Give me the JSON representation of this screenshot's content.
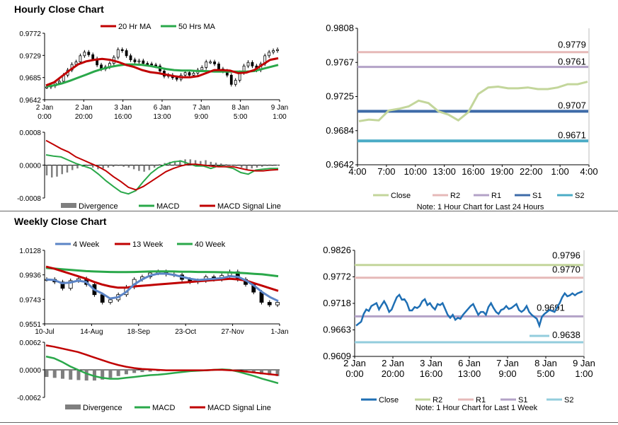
{
  "titles": {
    "hourly": "Hourly Close Chart",
    "weekly": "Weekly Close Chart"
  },
  "colors": {
    "ma_short": "#c00000",
    "ma_long": "#2aa84a",
    "ma_4w": "#5b84c6",
    "close_pivot": "#c3d69b",
    "r2_pivot": "#e6b9b8",
    "r1_pivot": "#b3a2c7",
    "s1_pivot": "#3e6ba8",
    "s2_pivot": "#4bacc6",
    "weekly_close": "#1f6fb4",
    "w_r2": "#c3d69b",
    "w_r1": "#e6b9b8",
    "w_s1": "#b3a2c7",
    "w_s2": "#93cddd",
    "divergence": "#7f7f7f"
  },
  "chart_data": [
    {
      "id": "hourly_price",
      "type": "line",
      "legend": [
        "20 Hr MA",
        "50 Hrs MA"
      ],
      "x_ticks": [
        "2 Jan\n0:00",
        "2 Jan\n20:00",
        "3 Jan\n16:00",
        "6 Jan\n13:00",
        "7 Jan\n9:00",
        "8 Jan\n5:00",
        "9 Jan\n1:00"
      ],
      "y_ticks": [
        "0.9772",
        "0.9729",
        "0.9685",
        "0.9642"
      ],
      "ylim": [
        0.9642,
        0.9772
      ],
      "series": [
        {
          "name": "Close",
          "style": "candle",
          "values": [
            0.9667,
            0.9669,
            0.9675,
            0.9678,
            0.969,
            0.97,
            0.9711,
            0.9716,
            0.9728,
            0.9735,
            0.973,
            0.9722,
            0.971,
            0.9702,
            0.9706,
            0.9713,
            0.9725,
            0.974,
            0.9738,
            0.9728,
            0.972,
            0.9716,
            0.9718,
            0.9713,
            0.9712,
            0.971,
            0.9708,
            0.9698,
            0.9688,
            0.969,
            0.9685,
            0.9682,
            0.969,
            0.9695,
            0.969,
            0.9694,
            0.97,
            0.9705,
            0.9716,
            0.9716,
            0.9712,
            0.9702,
            0.9698,
            0.969,
            0.9672,
            0.968,
            0.9695,
            0.9708,
            0.9715,
            0.9708,
            0.97,
            0.9712,
            0.9728,
            0.9735,
            0.9738,
            0.974
          ]
        },
        {
          "name": "20 Hr MA",
          "values": [
            0.967,
            0.9676,
            0.9688,
            0.97,
            0.9711,
            0.9717,
            0.972,
            0.9722,
            0.972,
            0.9716,
            0.971,
            0.9706,
            0.97,
            0.9696,
            0.9694,
            0.9691,
            0.9688,
            0.9686,
            0.9686,
            0.9688,
            0.9694,
            0.97,
            0.97,
            0.9699,
            0.9694,
            0.9695,
            0.97,
            0.971,
            0.972,
            0.9723
          ]
        },
        {
          "name": "50 Hrs MA",
          "values": [
            0.9668,
            0.967,
            0.9674,
            0.9679,
            0.9685,
            0.9691,
            0.9697,
            0.9702,
            0.9706,
            0.9709,
            0.9711,
            0.9711,
            0.971,
            0.9708,
            0.9705,
            0.9702,
            0.97,
            0.9699,
            0.9699,
            0.9698,
            0.9698,
            0.9697,
            0.9697,
            0.9697,
            0.9697,
            0.9697,
            0.9698,
            0.9702,
            0.9706,
            0.971
          ]
        }
      ]
    },
    {
      "id": "hourly_macd",
      "type": "bar",
      "legend": [
        "Divergence",
        "MACD",
        "MACD Signal Line"
      ],
      "y_ticks": [
        "0.0008",
        "0.0000",
        "-0.0008"
      ],
      "ylim": [
        -0.0008,
        0.0008
      ],
      "series": [
        {
          "name": "Divergence",
          "style": "bar",
          "values": [
            -0.00025,
            -0.0003,
            -0.00028,
            -0.00022,
            -0.00018,
            -0.00012,
            -8e-05,
            -4e-05,
            -2e-05,
            -6e-05,
            -0.0001,
            -8e-05,
            -6e-05,
            -4e-05,
            -2e-05,
            -4e-05,
            -6e-05,
            -0.0001,
            -0.00014,
            -0.00016,
            -0.00012,
            -6e-05,
            2e-05,
            5e-05,
            8e-05,
            0.0001,
            0.00012,
            0.00014,
            0.00014,
            0.00012,
            0.0001,
            0.00012,
            8e-05,
            6e-05,
            4e-05,
            2e-05,
            1e-05,
            -2e-05,
            -6e-05,
            -0.0001,
            -8e-05,
            -6e-05,
            -4e-05,
            -2e-05,
            -2e-05,
            1e-05
          ]
        },
        {
          "name": "MACD",
          "values": [
            0.00025,
            0.00022,
            0.0002,
            0.00012,
            4e-05,
            -2e-05,
            -8e-05,
            -0.00022,
            -0.00038,
            -0.00052,
            -0.00065,
            -0.0007,
            -0.00062,
            -0.0004,
            -0.0002,
            -6e-05,
            2e-05,
            8e-05,
            0.0001,
            4e-05,
            -2e-05,
            -2e-05,
            -8e-05,
            -2e-05,
            -4e-05,
            -8e-05,
            -0.00018,
            -0.00022,
            -0.00012,
            -0.0001,
            -8e-05,
            -8e-05
          ]
        },
        {
          "name": "MACD Signal Line",
          "values": [
            0.0006,
            0.0005,
            0.0004,
            0.00032,
            0.0002,
            0.00012,
            4e-05,
            -4e-05,
            -0.00014,
            -0.00028,
            -0.0004,
            -0.00054,
            -0.0006,
            -0.00052,
            -0.0004,
            -0.00028,
            -0.00016,
            -8e-05,
            -2e-05,
            2e-05,
            2e-05,
            0.0,
            -2e-05,
            -4e-05,
            -4e-05,
            -4e-05,
            -8e-05,
            -0.00012,
            -0.00014,
            -0.00014,
            -0.00012,
            -0.00011
          ]
        }
      ]
    },
    {
      "id": "hourly_pivot",
      "type": "line",
      "legend": [
        "Close",
        "R2",
        "R1",
        "S1",
        "S2"
      ],
      "note": "Note: 1 Hour Chart for Last 24 Hours",
      "x_ticks": [
        "4:00",
        "7:00",
        "10:00",
        "13:00",
        "16:00",
        "19:00",
        "22:00",
        "1:00",
        "4:00"
      ],
      "y_ticks": [
        "0.9808",
        "0.9767",
        "0.9725",
        "0.9684",
        "0.9642"
      ],
      "ylim": [
        0.9642,
        0.9808
      ],
      "levels": [
        {
          "name": "R2",
          "value": 0.9779,
          "label": "0.9779"
        },
        {
          "name": "R1",
          "value": 0.9761,
          "label": "0.9761"
        },
        {
          "name": "S1",
          "value": 0.9707,
          "label": "0.9707"
        },
        {
          "name": "S2",
          "value": 0.9671,
          "label": "0.9671"
        }
      ],
      "series": [
        {
          "name": "Close",
          "values": [
            0.9695,
            0.9697,
            0.9696,
            0.9708,
            0.971,
            0.9713,
            0.972,
            0.9717,
            0.9707,
            0.9703,
            0.9696,
            0.9706,
            0.9728,
            0.9736,
            0.9737,
            0.9735,
            0.9735,
            0.9736,
            0.9734,
            0.9734,
            0.9736,
            0.974,
            0.974,
            0.9743
          ]
        }
      ]
    },
    {
      "id": "weekly_price",
      "type": "line",
      "legend": [
        "4 Week",
        "13 Week",
        "40 Week"
      ],
      "x_ticks": [
        "10-Jul",
        "14-Aug",
        "18-Sep",
        "23-Oct",
        "27-Nov",
        "1-Jan"
      ],
      "y_ticks": [
        "1.0128",
        "0.9936",
        "0.9743",
        "0.9551"
      ],
      "ylim": [
        0.9551,
        1.0128
      ],
      "series": [
        {
          "name": "Close",
          "style": "candle",
          "values": [
            0.99,
            0.988,
            0.983,
            0.989,
            0.9905,
            0.986,
            0.978,
            0.972,
            0.974,
            0.978,
            0.984,
            0.99,
            0.992,
            0.995,
            0.996,
            0.994,
            0.9935,
            0.99,
            0.988,
            0.989,
            0.992,
            0.99,
            0.993,
            0.996,
            0.99,
            0.986,
            0.98,
            0.972,
            0.97,
            0.972
          ]
        },
        {
          "name": "4 Week",
          "values": [
            0.99,
            0.9895,
            0.987,
            0.9875,
            0.989,
            0.988,
            0.982,
            0.979,
            0.975,
            0.976,
            0.98,
            0.986,
            0.99,
            0.993,
            0.9945,
            0.9945,
            0.9935,
            0.992,
            0.9905,
            0.9895,
            0.99,
            0.9905,
            0.991,
            0.9925,
            0.992,
            0.989,
            0.985,
            0.98,
            0.976,
            0.973
          ]
        },
        {
          "name": "13 Week",
          "values": [
            1.0,
            0.9985,
            0.9965,
            0.9945,
            0.9925,
            0.9905,
            0.988,
            0.986,
            0.9845,
            0.9835,
            0.9835,
            0.9845,
            0.985,
            0.9855,
            0.986,
            0.9865,
            0.987,
            0.9875,
            0.988,
            0.9885,
            0.989,
            0.9895,
            0.99,
            0.9905,
            0.99,
            0.989,
            0.987,
            0.985,
            0.983,
            0.981
          ]
        },
        {
          "name": "40 Week",
          "values": [
            0.999,
            0.9985,
            0.998,
            0.9975,
            0.997,
            0.9965,
            0.9962,
            0.996,
            0.9958,
            0.9957,
            0.9957,
            0.9958,
            0.996,
            0.9962,
            0.9963,
            0.9963,
            0.9962,
            0.996,
            0.996,
            0.9958,
            0.9958,
            0.9957,
            0.9956,
            0.9955,
            0.9952,
            0.9948,
            0.9944,
            0.994,
            0.9932,
            0.9925
          ]
        }
      ]
    },
    {
      "id": "weekly_macd",
      "type": "bar",
      "legend": [
        "Divergence",
        "MACD",
        "MACD Signal Line"
      ],
      "y_ticks": [
        "0.0062",
        "0.0000",
        "-0.0062"
      ],
      "ylim": [
        -0.0062,
        0.0062
      ],
      "series": [
        {
          "name": "Divergence",
          "style": "bar",
          "values": [
            -0.0016,
            -0.0018,
            -0.002,
            -0.0022,
            -0.0023,
            -0.0024,
            -0.0024,
            -0.0022,
            -0.0018,
            -0.0014,
            -0.001,
            -0.0007,
            -0.0005,
            -0.0004,
            -0.0003,
            -0.0002,
            -0.0001,
            -0.0001,
            0.0,
            0.0,
            0.0001,
            0.0001,
            0.0001,
            0.0,
            -0.0002,
            -0.0004,
            -0.0007,
            -0.001,
            -0.0012,
            -0.0014
          ]
        },
        {
          "name": "MACD",
          "values": [
            0.003,
            0.0026,
            0.0018,
            0.0008,
            0.0,
            -0.0008,
            -0.0014,
            -0.0018,
            -0.002,
            -0.002,
            -0.0018,
            -0.0016,
            -0.0014,
            -0.0012,
            -0.0011,
            -0.0009,
            -0.0007,
            -0.0005,
            -0.0003,
            -0.0002,
            -0.0001,
            0.0,
            0.0001,
            0.0,
            -0.0004,
            -0.0009,
            -0.0014,
            -0.002,
            -0.0025,
            -0.003
          ]
        },
        {
          "name": "MACD Signal Line",
          "values": [
            0.0055,
            0.0052,
            0.0048,
            0.0044,
            0.004,
            0.0034,
            0.0028,
            0.0022,
            0.0016,
            0.0011,
            0.0007,
            0.0004,
            0.0002,
            0.0001,
            0.0,
            -0.0001,
            -0.0001,
            -0.0001,
            -0.0001,
            -0.0001,
            -0.0001,
            0.0,
            0.0,
            -0.0001,
            -0.0002,
            -0.0004,
            -0.0006,
            -0.0008,
            -0.001,
            -0.0012
          ]
        }
      ]
    },
    {
      "id": "weekly_pivot",
      "type": "line",
      "legend": [
        "Close",
        "R2",
        "R1",
        "S1",
        "S2"
      ],
      "note": "Note: 1 Hour Chart for Last 1 Week",
      "x_ticks": [
        "2 Jan\n0:00",
        "2 Jan\n20:00",
        "3 Jan\n16:00",
        "6 Jan\n13:00",
        "7 Jan\n9:00",
        "8 Jan\n5:00",
        "9 Jan\n1:00"
      ],
      "y_ticks": [
        "0.9826",
        "0.9772",
        "0.9718",
        "0.9663",
        "0.9609"
      ],
      "ylim": [
        0.9609,
        0.9826
      ],
      "levels": [
        {
          "name": "R2",
          "value": 0.9796,
          "label": "0.9796"
        },
        {
          "name": "R1",
          "value": 0.977,
          "label": "0.9770"
        },
        {
          "name": "S1",
          "value": 0.9691,
          "label": "0.9691"
        },
        {
          "name": "S2",
          "value": 0.9638,
          "label": "0.9638"
        }
      ],
      "series": [
        {
          "name": "Close",
          "values": [
            0.9672,
            0.9676,
            0.968,
            0.9696,
            0.9705,
            0.9702,
            0.9712,
            0.9715,
            0.9718,
            0.9705,
            0.9714,
            0.9722,
            0.9713,
            0.97,
            0.9705,
            0.9718,
            0.973,
            0.9735,
            0.9725,
            0.9726,
            0.9718,
            0.9703,
            0.9703,
            0.971,
            0.9708,
            0.9712,
            0.9722,
            0.9726,
            0.9714,
            0.9718,
            0.971,
            0.9705,
            0.9716,
            0.9714,
            0.9718,
            0.9706,
            0.9694,
            0.9688,
            0.9694,
            0.9684,
            0.9688,
            0.9686,
            0.9694,
            0.97,
            0.9706,
            0.9712,
            0.9716,
            0.9705,
            0.9694,
            0.97,
            0.97,
            0.9694,
            0.971,
            0.9718,
            0.9708,
            0.97,
            0.9696,
            0.9704,
            0.9706,
            0.9712,
            0.9706,
            0.9708,
            0.9712,
            0.9716,
            0.9704,
            0.97,
            0.9704,
            0.9712,
            0.97,
            0.9694,
            0.969,
            0.9686,
            0.9672,
            0.969,
            0.9696,
            0.97,
            0.9704,
            0.9702,
            0.97,
            0.971,
            0.9718,
            0.973,
            0.9738,
            0.9732,
            0.9734,
            0.9738,
            0.9734,
            0.9738,
            0.974,
            0.9742
          ]
        }
      ]
    }
  ]
}
